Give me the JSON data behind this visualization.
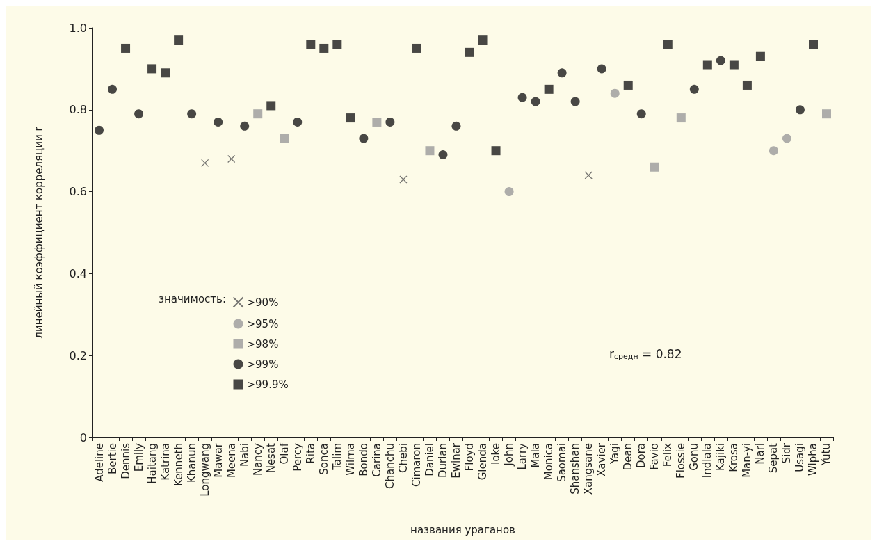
{
  "chart_data": {
    "type": "scatter",
    "xlabel": "названия ураганов",
    "ylabel": "линейный коэффициент корреляции r",
    "categories": [
      "Adeline",
      "Bertie",
      "Dennis",
      "Emily",
      "Haitang",
      "Katrina",
      "Kenneth",
      "Khanun",
      "Longwang",
      "Mawar",
      "Meena",
      "Nabi",
      "Nancy",
      "Nesat",
      "Olaf",
      "Percy",
      "Rita",
      "Sonca",
      "Talim",
      "Wilma",
      "Bondo",
      "Carina",
      "Chanchu",
      "Chebi",
      "Cimaron",
      "Daniel",
      "Durian",
      "Ewinar",
      "Floyd",
      "Glenda",
      "Ioke",
      "John",
      "Larry",
      "Mala",
      "Monica",
      "Saomai",
      "Shanshan",
      "Xangsane",
      "Xavier",
      "Yagi",
      "Dean",
      "Dora",
      "Favio",
      "Felix",
      "Flossie",
      "Gonu",
      "Indlala",
      "Kajiki",
      "Krosa",
      "Man-yi",
      "Nari",
      "Sepat",
      "Sidr",
      "Usagi",
      "Wipha",
      "Yutu"
    ],
    "series": [
      {
        "name": ">90%",
        "color": "#555555",
        "marker": "cross",
        "values": [
          null,
          null,
          null,
          null,
          null,
          null,
          null,
          null,
          0.67,
          null,
          0.68,
          null,
          null,
          null,
          null,
          null,
          null,
          null,
          null,
          null,
          null,
          null,
          null,
          0.63,
          null,
          null,
          null,
          null,
          null,
          null,
          null,
          null,
          null,
          null,
          null,
          null,
          null,
          0.64,
          null,
          null,
          null,
          null,
          null,
          null,
          null,
          null,
          null,
          null,
          null,
          null,
          null,
          null,
          null,
          null,
          null,
          null
        ]
      },
      {
        "name": ">95%",
        "color": "#9a9a9a",
        "marker": "circle",
        "values": [
          null,
          null,
          null,
          null,
          null,
          null,
          null,
          null,
          null,
          null,
          null,
          null,
          null,
          null,
          null,
          null,
          null,
          null,
          null,
          null,
          null,
          null,
          null,
          null,
          null,
          null,
          null,
          null,
          null,
          null,
          null,
          0.6,
          null,
          null,
          null,
          null,
          null,
          null,
          null,
          0.84,
          null,
          null,
          null,
          null,
          null,
          null,
          null,
          null,
          null,
          null,
          null,
          0.7,
          0.73,
          null,
          null,
          null
        ]
      },
      {
        "name": ">98%",
        "color": "#9a9a9a",
        "marker": "square",
        "values": [
          null,
          null,
          null,
          null,
          null,
          null,
          null,
          null,
          null,
          null,
          null,
          null,
          0.79,
          null,
          0.73,
          null,
          null,
          null,
          null,
          null,
          null,
          0.77,
          null,
          null,
          null,
          0.7,
          null,
          null,
          null,
          null,
          null,
          null,
          null,
          null,
          null,
          null,
          null,
          null,
          null,
          null,
          null,
          null,
          0.66,
          null,
          0.78,
          null,
          null,
          null,
          null,
          null,
          null,
          null,
          null,
          null,
          null,
          0.79
        ]
      },
      {
        "name": ">99%",
        "color": "#1a1a1a",
        "marker": "circle",
        "values": [
          0.75,
          0.85,
          null,
          0.79,
          null,
          null,
          null,
          0.79,
          null,
          0.77,
          null,
          0.76,
          null,
          null,
          null,
          0.77,
          null,
          null,
          null,
          null,
          0.73,
          null,
          0.77,
          null,
          null,
          null,
          0.69,
          0.76,
          null,
          null,
          null,
          null,
          0.83,
          0.82,
          null,
          0.89,
          0.82,
          null,
          0.9,
          null,
          null,
          0.79,
          null,
          null,
          null,
          0.85,
          null,
          0.92,
          null,
          null,
          null,
          null,
          null,
          0.8,
          null,
          null
        ]
      },
      {
        "name": ">99.9%",
        "color": "#1a1a1a",
        "marker": "square",
        "values": [
          null,
          null,
          0.95,
          null,
          0.9,
          0.89,
          0.97,
          null,
          null,
          null,
          null,
          null,
          null,
          0.81,
          null,
          null,
          0.96,
          0.95,
          0.96,
          0.78,
          null,
          null,
          null,
          null,
          0.95,
          null,
          null,
          null,
          0.94,
          0.97,
          0.7,
          null,
          null,
          null,
          0.85,
          null,
          null,
          null,
          null,
          null,
          0.86,
          null,
          null,
          0.96,
          null,
          null,
          0.91,
          null,
          0.91,
          0.86,
          0.93,
          null,
          null,
          null,
          0.96,
          null
        ]
      }
    ],
    "legend_title": "значимость:",
    "legend": "bottom left",
    "annotations": [
      "r$_{средн}$ = 0.82"
    ],
    "ylim": [
      0,
      1
    ],
    "yticks": [
      0,
      0.2,
      0.4,
      0.6,
      0.8,
      {
        "value": 1,
        "label": "1.0"
      }
    ],
    "grid": false
  }
}
